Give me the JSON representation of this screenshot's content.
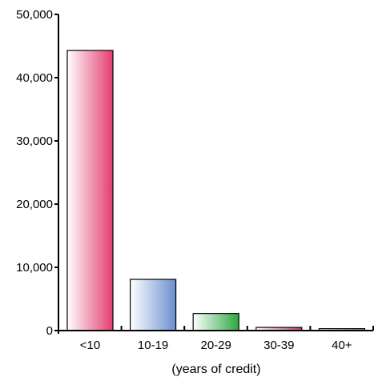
{
  "chart_data": {
    "type": "bar",
    "categories": [
      "<10",
      "10-19",
      "20-29",
      "30-39",
      "40+"
    ],
    "values": [
      44300,
      8100,
      2700,
      500,
      300
    ],
    "ylim": [
      0,
      50000
    ],
    "yticks": [
      0,
      10000,
      20000,
      30000,
      40000,
      50000
    ],
    "ytick_labels": [
      "0",
      "10,000",
      "20,000",
      "30,000",
      "40,000",
      "50,000"
    ],
    "xlabel": "(years of credit)",
    "ylabel": "",
    "title": "",
    "grid": false,
    "bar_colors": [
      "#e23c70",
      "#6a8ed0",
      "#2aa840",
      "#c0406a",
      "#a0a0c8"
    ]
  }
}
